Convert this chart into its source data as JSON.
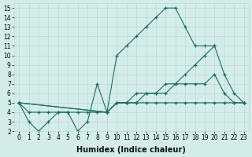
{
  "xlabel": "Humidex (Indice chaleur)",
  "xlim": [
    -0.5,
    23.5
  ],
  "ylim": [
    2,
    15.5
  ],
  "xticks": [
    0,
    1,
    2,
    3,
    4,
    5,
    6,
    7,
    8,
    9,
    10,
    11,
    12,
    13,
    14,
    15,
    16,
    17,
    18,
    19,
    20,
    21,
    22,
    23
  ],
  "yticks": [
    2,
    3,
    4,
    5,
    6,
    7,
    8,
    9,
    10,
    11,
    12,
    13,
    14,
    15
  ],
  "bg_color": "#d4edeb",
  "grid_color": "#b8d8d4",
  "line_color": "#1a6b5e",
  "series": [
    {
      "x": [
        0,
        1,
        2,
        3,
        4,
        5,
        6,
        7,
        8,
        9,
        10,
        11,
        12,
        13,
        14,
        15,
        16,
        17,
        18,
        19,
        20
      ],
      "y": [
        5,
        3,
        2,
        3,
        4,
        4,
        2,
        3,
        7,
        4,
        10,
        11,
        12,
        13,
        14,
        15,
        15,
        13,
        11,
        11,
        11
      ]
    },
    {
      "x": [
        0,
        1,
        2,
        3,
        4,
        5,
        6,
        7,
        8,
        9,
        10,
        11,
        12,
        13,
        14,
        15,
        16,
        17,
        18,
        19,
        20,
        21,
        22,
        23
      ],
      "y": [
        5,
        4,
        4,
        4,
        4,
        4,
        4,
        4,
        4,
        4,
        5,
        5,
        5,
        5,
        5,
        5,
        5,
        5,
        5,
        5,
        5,
        5,
        5,
        5
      ]
    },
    {
      "x": [
        0,
        9,
        10,
        11,
        12,
        13,
        14,
        15,
        16,
        17,
        18,
        19,
        20,
        21,
        22,
        23
      ],
      "y": [
        5,
        4,
        5,
        5,
        6,
        6,
        6,
        7,
        7,
        7,
        7,
        7,
        8,
        6,
        5,
        5
      ]
    },
    {
      "x": [
        0,
        9,
        10,
        11,
        12,
        13,
        14,
        15,
        16,
        17,
        18,
        19,
        20,
        21,
        22,
        23
      ],
      "y": [
        5,
        4,
        5,
        5,
        5,
        6,
        6,
        6,
        7,
        8,
        9,
        10,
        11,
        8,
        6,
        5
      ]
    }
  ],
  "tick_fontsize": 5.5,
  "label_fontsize": 7
}
